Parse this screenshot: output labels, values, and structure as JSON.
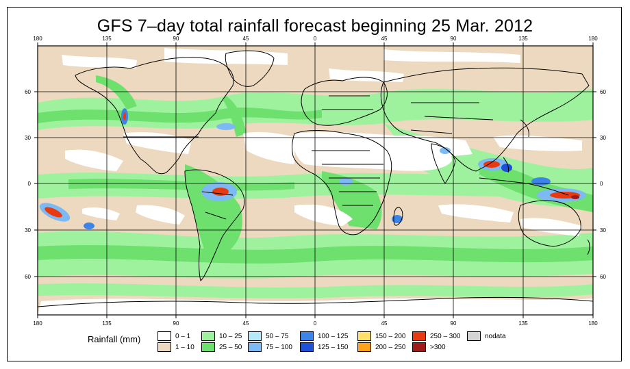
{
  "title": "GFS 7–day total rainfall forecast beginning 25 Mar. 2012",
  "top_lon_labels": [
    "180",
    "135",
    "90",
    "45",
    "0",
    "45",
    "90",
    "135",
    "180"
  ],
  "bottom_lon_labels": [
    "180",
    "135",
    "90",
    "45",
    "0",
    "45",
    "90",
    "135",
    "180"
  ],
  "left_lat_labels": [
    "60",
    "30",
    "0",
    "30",
    "60"
  ],
  "right_lat_labels": [
    "60",
    "30",
    "0",
    "30",
    "60"
  ],
  "legend": {
    "title": "Rainfall (mm)",
    "entries": [
      {
        "label": "0 – 1",
        "color": "#ffffff"
      },
      {
        "label": "1 – 10",
        "color": "#ecd9bf"
      },
      {
        "label": "10 – 25",
        "color": "#9ef29e"
      },
      {
        "label": "25 – 50",
        "color": "#6de06d"
      },
      {
        "label": "50 – 75",
        "color": "#b7e8f8"
      },
      {
        "label": "75 – 100",
        "color": "#7db9f2"
      },
      {
        "label": "100 – 125",
        "color": "#3d84e8"
      },
      {
        "label": "125 – 150",
        "color": "#1d52d6"
      },
      {
        "label": "150 – 200",
        "color": "#ffe06a"
      },
      {
        "label": "200 – 250",
        "color": "#ffa11a"
      },
      {
        "label": "250 – 300",
        "color": "#e83a10"
      },
      {
        "label": ">300",
        "color": "#a01a1a"
      },
      {
        "label": "nodata",
        "color": "#d4d4d4"
      }
    ]
  },
  "colors": {
    "ocean_tan": "#ecd9bf",
    "green_light": "#9ef29e",
    "green": "#6de06d",
    "dry_white": "#ffffff",
    "blue_light": "#7db9f2",
    "blue": "#3d84e8",
    "red": "#e83a10",
    "dark_red": "#a01a1a",
    "coast": "#000000"
  }
}
